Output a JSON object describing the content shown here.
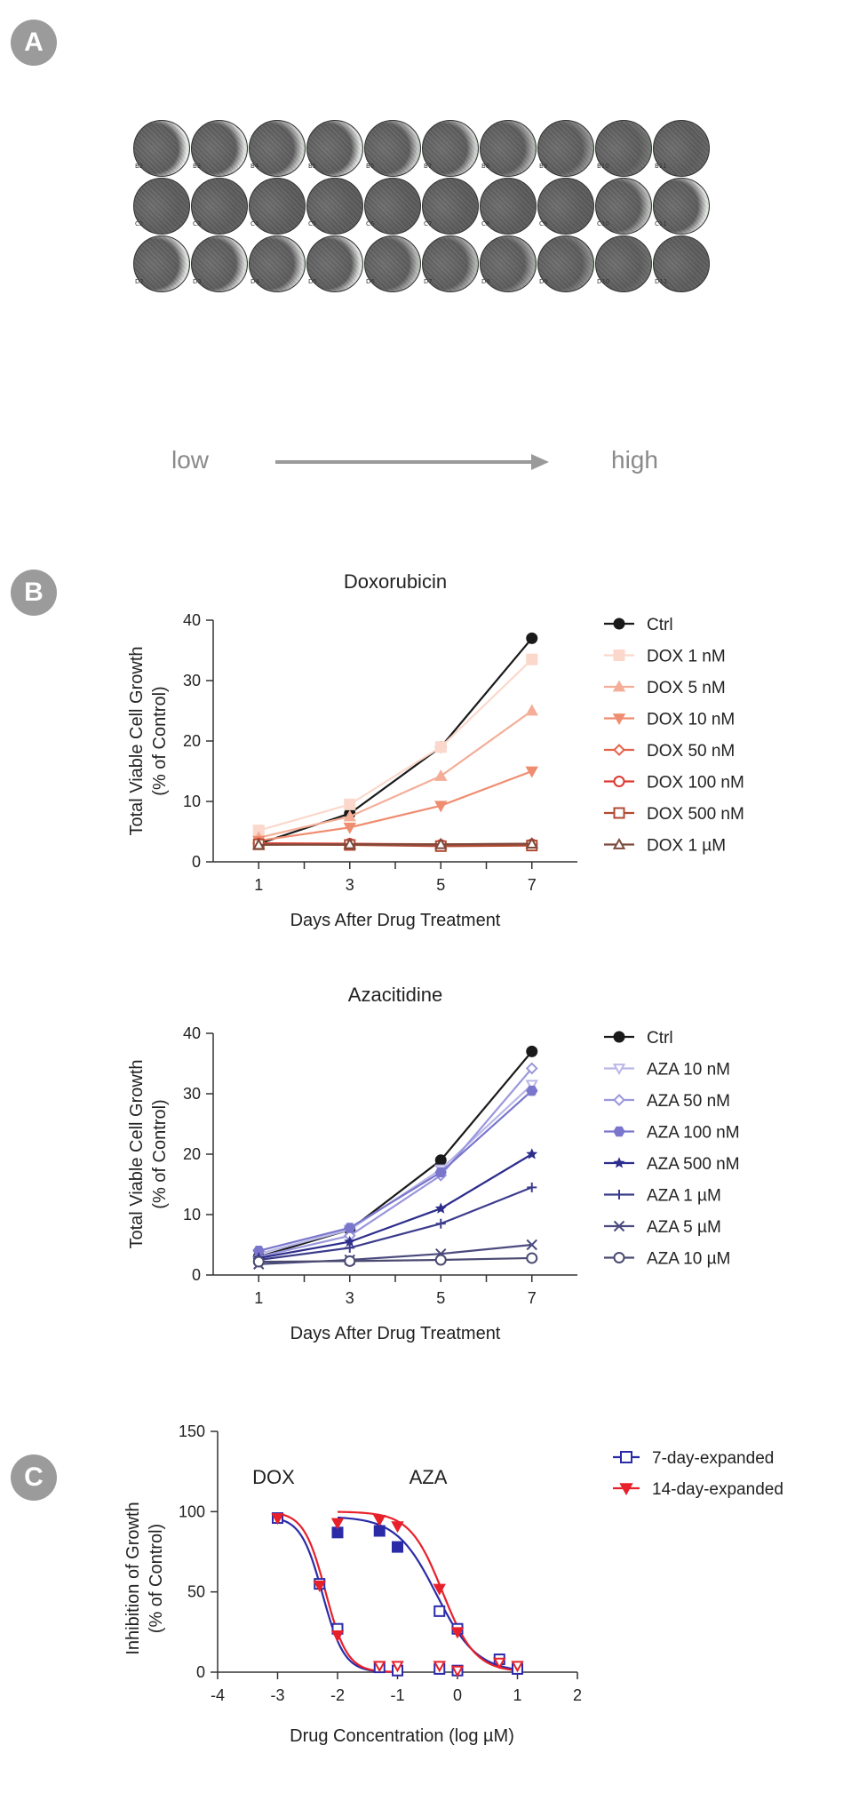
{
  "panels": {
    "a": "A",
    "b": "B",
    "c": "C"
  },
  "plate": {
    "rows": [
      {
        "labels": [
          "B2",
          "B3",
          "B4",
          "B5",
          "B6",
          "B7",
          "B8",
          "B9",
          "B10",
          "B11"
        ],
        "green": [
          0.9,
          0.85,
          0.75,
          0.85,
          0.7,
          0.75,
          0.55,
          0.35,
          0.15,
          0.05
        ]
      },
      {
        "labels": [
          "C2",
          "C3",
          "C4",
          "C5",
          "C6",
          "C7",
          "C8",
          "C9",
          "C10",
          "C11"
        ],
        "green": [
          0.02,
          0.02,
          0.0,
          0.0,
          0.0,
          0.0,
          0.0,
          0.0,
          0.6,
          0.85
        ]
      },
      {
        "labels": [
          "D2",
          "D3",
          "D4",
          "D5",
          "D6",
          "D7",
          "D8",
          "D9",
          "D10",
          "D11"
        ],
        "green": [
          0.85,
          0.8,
          0.75,
          0.85,
          0.6,
          0.55,
          0.45,
          0.3,
          0.1,
          0.02
        ]
      }
    ]
  },
  "scale": {
    "low": "low",
    "high": "high"
  },
  "colors": {
    "badge": "#9b9b9b",
    "well_gray": "#6e6e6e",
    "well_green": "#3fcf3f"
  },
  "chart_data": [
    {
      "type": "line",
      "title": "Doxorubicin",
      "xlabel": "Days After Drug Treatment",
      "ylabel": "Total Viable Cell Growth\n(% of Control)",
      "xlim": [
        0,
        8
      ],
      "ylim": [
        0,
        40
      ],
      "xticks": [
        1,
        3,
        5,
        7
      ],
      "yticks": [
        0,
        10,
        20,
        30,
        40
      ],
      "grid": false,
      "legend": "right",
      "x": [
        1,
        3,
        5,
        7
      ],
      "series": [
        {
          "name": "Ctrl",
          "values": [
            3.0,
            8.0,
            19.0,
            37.0
          ],
          "color": "#1a1a1a",
          "marker": "circle-filled"
        },
        {
          "name": "DOX 1 nM",
          "values": [
            5.2,
            9.5,
            19.0,
            33.5
          ],
          "color": "#fbd8cb",
          "marker": "square-filled"
        },
        {
          "name": "DOX 5 nM",
          "values": [
            4.0,
            7.5,
            14.2,
            25.0
          ],
          "color": "#f4ae98",
          "marker": "triangle-up-filled"
        },
        {
          "name": "DOX 10 nM",
          "values": [
            3.5,
            5.7,
            9.3,
            15.0
          ],
          "color": "#ef8d70",
          "marker": "triangle-down-filled"
        },
        {
          "name": "DOX 50 nM",
          "values": [
            3.1,
            3.0,
            2.9,
            3.0
          ],
          "color": "#e5634b",
          "marker": "diamond-open"
        },
        {
          "name": "DOX 100 nM",
          "values": [
            3.0,
            3.0,
            2.8,
            2.9
          ],
          "color": "#dc3a30",
          "marker": "circle-open"
        },
        {
          "name": "DOX 500 nM",
          "values": [
            2.9,
            2.8,
            2.6,
            2.7
          ],
          "color": "#b24a32",
          "marker": "square-open"
        },
        {
          "name": "DOX 1 µM",
          "values": [
            2.8,
            2.9,
            2.9,
            3.0
          ],
          "color": "#7d4a3c",
          "marker": "triangle-up-open"
        }
      ]
    },
    {
      "type": "line",
      "title": "Azacitidine",
      "xlabel": "Days After Drug Treatment",
      "ylabel": "Total Viable Cell Growth\n(% of Control)",
      "xlim": [
        0,
        8
      ],
      "ylim": [
        0,
        40
      ],
      "xticks": [
        1,
        3,
        5,
        7
      ],
      "yticks": [
        0,
        10,
        20,
        30,
        40
      ],
      "grid": false,
      "legend": "right",
      "x": [
        1,
        3,
        5,
        7
      ],
      "series": [
        {
          "name": "Ctrl",
          "values": [
            3.0,
            7.5,
            19.0,
            37.0
          ],
          "color": "#1a1a1a",
          "marker": "circle-filled"
        },
        {
          "name": "AZA 10 nM",
          "values": [
            3.5,
            7.5,
            17.5,
            31.5
          ],
          "color": "#b9b7e6",
          "marker": "triangle-down-open"
        },
        {
          "name": "AZA 50 nM",
          "values": [
            3.0,
            6.5,
            16.5,
            34.2
          ],
          "color": "#9a97dc",
          "marker": "diamond-open"
        },
        {
          "name": "AZA 100 nM",
          "values": [
            4.0,
            7.8,
            17.0,
            30.5
          ],
          "color": "#7a76cc",
          "marker": "hexagon-filled"
        },
        {
          "name": "AZA 500 nM",
          "values": [
            2.8,
            5.5,
            11.0,
            20.0
          ],
          "color": "#2d2d8c",
          "marker": "star"
        },
        {
          "name": "AZA 1 µM",
          "values": [
            2.5,
            4.5,
            8.5,
            14.5
          ],
          "color": "#3c3c8c",
          "marker": "plus"
        },
        {
          "name": "AZA 5 µM",
          "values": [
            1.8,
            2.5,
            3.5,
            5.0
          ],
          "color": "#4a4a7e",
          "marker": "cross"
        },
        {
          "name": "AZA 10 µM",
          "values": [
            2.2,
            2.3,
            2.5,
            2.8
          ],
          "color": "#4b4b72",
          "marker": "circle-open"
        }
      ]
    },
    {
      "type": "scatter",
      "xlabel": "Drug Concentration (log µM)",
      "ylabel": "Inhibition of Growth\n(% of Control)",
      "xlim": [
        -4,
        2
      ],
      "ylim": [
        0,
        150
      ],
      "xticks": [
        -4,
        -3,
        -2,
        -1,
        0,
        1,
        2
      ],
      "yticks": [
        0,
        50,
        100,
        150
      ],
      "grid": false,
      "legend": "top-right",
      "annotations": [
        "DOX",
        "AZA"
      ],
      "series": [
        {
          "name": "7-day-expanded",
          "color": "#2b2ba8",
          "marker": "square-open",
          "points": [
            [
              -3,
              96
            ],
            [
              -2.3,
              55
            ],
            [
              -2.0,
              27
            ],
            [
              -1.3,
              3
            ],
            [
              -1.0,
              1
            ],
            [
              -0.3,
              2
            ],
            [
              0,
              1
            ],
            [
              -1.3,
              88
            ],
            [
              -1.0,
              78
            ],
            [
              -0.3,
              38
            ],
            [
              0,
              27
            ],
            [
              0.7,
              8
            ],
            [
              1,
              2
            ],
            [
              -2.0,
              87
            ]
          ],
          "fit": {
            "top": 97,
            "bottom": 0,
            "ic50": [
              -2.25,
              -0.35
            ],
            "hill": [
              2.4,
              1.3
            ]
          }
        },
        {
          "name": "14-day-expanded",
          "color": "#e8202a",
          "marker": "triangle-down-filled",
          "points": [
            [
              -3,
              96
            ],
            [
              -2.3,
              54
            ],
            [
              -2.0,
              23
            ],
            [
              -1.3,
              4
            ],
            [
              -1.0,
              4
            ],
            [
              -0.3,
              4
            ],
            [
              0,
              1
            ],
            [
              -2.0,
              93
            ],
            [
              -1.3,
              95
            ],
            [
              -1.0,
              91
            ],
            [
              -0.3,
              52
            ],
            [
              0,
              25
            ],
            [
              0.7,
              6
            ],
            [
              1,
              4
            ]
          ],
          "fit": {
            "top": 100,
            "bottom": 0,
            "ic50": [
              -2.2,
              -0.25
            ],
            "hill": [
              2.4,
              1.6
            ]
          }
        }
      ]
    }
  ]
}
